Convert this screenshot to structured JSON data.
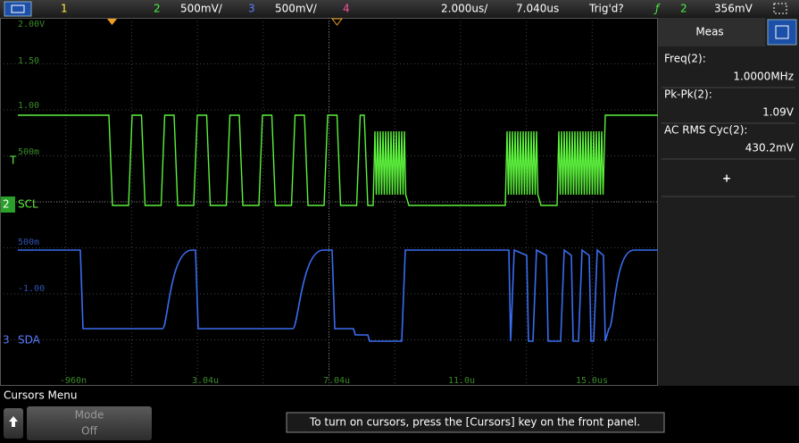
{
  "top_bar": {
    "ch1": "1",
    "ch2": "2",
    "ch2_scale": "500mV/",
    "ch3": "3",
    "ch3_scale": "500mV/",
    "ch4": "4",
    "timebase": "2.000us/",
    "delay": "7.040us",
    "status": "Trig'd?",
    "trigger_channel": "2",
    "trigger_level": "356mV"
  },
  "graticule": {
    "ch2_labels": [
      "2.00V",
      "1.50",
      "1.00",
      "500m"
    ],
    "ch3_labels": [
      "500m",
      "-1.00"
    ],
    "time_labels": [
      "-960n",
      "3.04u",
      "7.04u",
      "11.0u",
      "15.0us"
    ]
  },
  "channels": [
    {
      "marker": "2",
      "name": "SCL"
    },
    {
      "marker": "3",
      "name": "SDA"
    }
  ],
  "trigger_marker": "T",
  "meas_panel": {
    "title": "Meas",
    "items": [
      {
        "label": "Freq(2):",
        "value": "1.0000MHz"
      },
      {
        "label": "Pk-Pk(2):",
        "value": "1.09V"
      },
      {
        "label": "AC RMS Cyc(2):",
        "value": "430.2mV"
      }
    ],
    "add": "+"
  },
  "bottom": {
    "menu_title": "Cursors Menu",
    "softkey_label": "Mode",
    "softkey_value": "Off",
    "message": "To turn on cursors, press the [Cursors] key on the front panel."
  }
}
